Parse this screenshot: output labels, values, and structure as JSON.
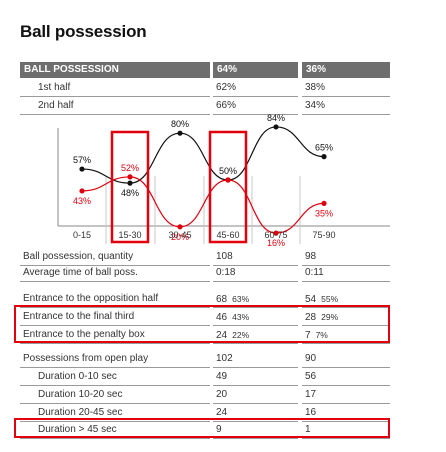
{
  "title": "Ball possession",
  "header": {
    "label": "BALL POSSESSION",
    "team1": "64%",
    "team2": "36%"
  },
  "halves": [
    {
      "label": "1st half",
      "team1": "62%",
      "team2": "38%"
    },
    {
      "label": "2nd half",
      "team1": "66%",
      "team2": "34%"
    }
  ],
  "chart_data": {
    "type": "line",
    "categories": [
      "0-15",
      "15-30",
      "30-45",
      "45-60",
      "60-75",
      "75-90"
    ],
    "series": [
      {
        "values": [
          57,
          48,
          80,
          50,
          84,
          65
        ],
        "labels": [
          "57%",
          "48%",
          "80%",
          "50%",
          "84%",
          "65%"
        ],
        "color": "#111111"
      },
      {
        "values": [
          43,
          52,
          20,
          50,
          16,
          35
        ],
        "labels": [
          "43%",
          "52%",
          "20%",
          "",
          "16%",
          "35%"
        ],
        "color": "#e0000e"
      }
    ],
    "highlighted_categories": [
      "15-30",
      "45-60"
    ]
  },
  "stats": [
    {
      "label": "Ball possession, quantity",
      "team1": "108",
      "team2": "98"
    },
    {
      "label": "Average time of ball poss.",
      "team1": "0:18",
      "team2": "0:11"
    },
    {
      "label": "Entrance to the opposition half",
      "team1": "68",
      "team1_pct": "63%",
      "team2": "54",
      "team2_pct": "55%"
    },
    {
      "label": "Entrance to the final third",
      "team1": "46",
      "team1_pct": "43%",
      "team2": "28",
      "team2_pct": "29%"
    },
    {
      "label": "Entrance to the penalty box",
      "team1": "24",
      "team1_pct": "22%",
      "team2": "7",
      "team2_pct": "7%"
    },
    {
      "label": "Possessions from open play",
      "team1": "102",
      "team2": "90"
    },
    {
      "label": "Duration  0-10 sec",
      "team1": "49",
      "team2": "56"
    },
    {
      "label": "Duration  10-20 sec",
      "team1": "20",
      "team2": "17"
    },
    {
      "label": "Duration  20-45 sec",
      "team1": "24",
      "team2": "16"
    },
    {
      "label": "Duration  > 45 sec",
      "team1": "9",
      "team2": "1"
    }
  ]
}
